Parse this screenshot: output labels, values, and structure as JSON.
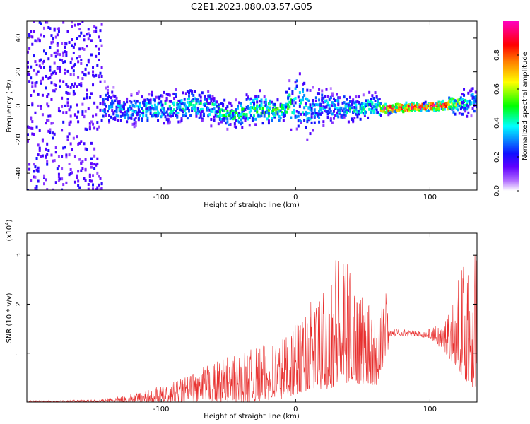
{
  "title": "C2E1.2023.080.03.57.G05",
  "chart_data": [
    {
      "type": "heatmap",
      "xlabel": "Height of straight line (km)",
      "ylabel": "Frequency (Hz)",
      "xlim": [
        -200,
        135
      ],
      "ylim": [
        -50,
        50
      ],
      "x_ticks": [
        -100,
        0,
        100
      ],
      "y_ticks": [
        -40,
        -20,
        0,
        20,
        40
      ],
      "colorbar": {
        "label": "Normalized spectral amplitude",
        "range": [
          0,
          1
        ],
        "ticks": [
          0.0,
          0.2,
          0.4,
          0.6,
          0.8
        ],
        "colors": [
          "#ffffff",
          "#b06cff",
          "#6000ff",
          "#1010ff",
          "#00ffff",
          "#00ff00",
          "#ffff00",
          "#ff8000",
          "#ff0000",
          "#ff00c0"
        ]
      },
      "ridge": [
        {
          "x": -200,
          "f": 0,
          "amp": 0.3,
          "width": 50
        },
        {
          "x": -140,
          "f": 0,
          "amp": 0.3,
          "width": 12
        },
        {
          "x": -130,
          "f": -3,
          "amp": 0.35,
          "width": 8
        },
        {
          "x": -100,
          "f": -2,
          "amp": 0.4,
          "width": 10
        },
        {
          "x": -70,
          "f": 1,
          "amp": 0.4,
          "width": 10
        },
        {
          "x": -50,
          "f": -6,
          "amp": 0.45,
          "width": 8
        },
        {
          "x": -30,
          "f": -2,
          "amp": 0.45,
          "width": 10
        },
        {
          "x": -10,
          "f": -3,
          "amp": 0.55,
          "width": 6
        },
        {
          "x": 0,
          "f": 5,
          "amp": 0.4,
          "width": 20
        },
        {
          "x": 10,
          "f": -5,
          "amp": 0.35,
          "width": 15
        },
        {
          "x": 20,
          "f": 0,
          "amp": 0.35,
          "width": 10
        },
        {
          "x": 40,
          "f": -2,
          "amp": 0.4,
          "width": 8
        },
        {
          "x": 60,
          "f": 0,
          "amp": 0.4,
          "width": 8
        },
        {
          "x": 65,
          "f": -2,
          "amp": 0.9,
          "width": 3
        },
        {
          "x": 110,
          "f": 0,
          "amp": 0.9,
          "width": 3
        },
        {
          "x": 125,
          "f": 2,
          "amp": 0.4,
          "width": 8
        },
        {
          "x": 135,
          "f": 3,
          "amp": 0.4,
          "width": 8
        }
      ]
    },
    {
      "type": "line",
      "xlabel": "Height of straight line (km)",
      "ylabel": "SNR (10 * v/v)",
      "y_multiplier": "(x10",
      "y_multiplier_exp": "4",
      "y_multiplier_close": ")",
      "xlim": [
        -200,
        135
      ],
      "ylim": [
        0,
        3.45
      ],
      "x_ticks": [
        -100,
        0,
        100
      ],
      "y_ticks": [
        1,
        2,
        3
      ],
      "color": "#e8302f",
      "envelope": {
        "x": [
          -200,
          -150,
          -130,
          -110,
          -90,
          -70,
          -50,
          -30,
          -10,
          0,
          10,
          20,
          30,
          40,
          50,
          60,
          68,
          70,
          80,
          90,
          100,
          110,
          120,
          130,
          135
        ],
        "y_max": [
          0.03,
          0.05,
          0.12,
          0.25,
          0.42,
          0.7,
          0.95,
          1.1,
          1.4,
          1.6,
          2.0,
          2.4,
          3.2,
          2.8,
          2.3,
          3.0,
          2.3,
          1.5,
          1.5,
          1.45,
          1.5,
          1.65,
          2.4,
          3.45,
          3.3
        ],
        "y_min": [
          0.0,
          0.0,
          0.0,
          0.0,
          0.0,
          0.0,
          0.0,
          0.0,
          0.05,
          0.15,
          0.25,
          0.25,
          0.3,
          0.4,
          0.35,
          0.3,
          0.9,
          1.35,
          1.35,
          1.35,
          1.3,
          1.05,
          0.7,
          0.3,
          0.3
        ]
      }
    }
  ]
}
